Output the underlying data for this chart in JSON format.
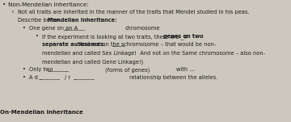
{
  "bg_color": "#cdc8be",
  "text_color": "#1a1a1a",
  "title": "Non-Mendelian Inheritance:",
  "line1": "Not all traits are inherited in the manner of the traits that Mendel studied in his peas.",
  "line2a": "Describe below ",
  "line2b": "Mendelian Inheritance:",
  "line3a": "One gene on an A",
  "line3b": "chromosome",
  "line4a": "If the experiment is looking at two traits, there are _#",
  "line4b": "genes on two",
  "line5a": "separate autosomes.",
  "line5b": " And not on the s",
  "line5c": "chromosome – that would be non-",
  "line6": "mendelian and called Sex Linkage!  And not on the Same chromosome – also non-",
  "line7": "mendelian and called Gene Linkage!)",
  "line8a": "Only two",
  "line8b": "(forms of genes)",
  "line8c": "with ...",
  "line9c": "relationship between the alleles.",
  "footer": "On-Mendelian Inheritance"
}
